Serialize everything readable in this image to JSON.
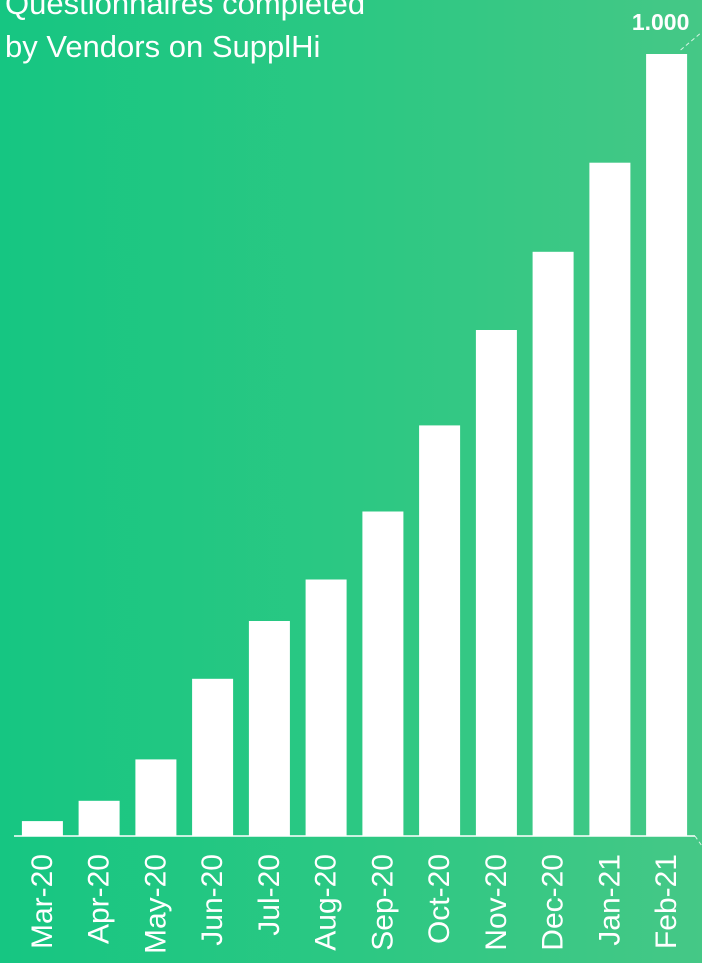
{
  "chart_data": {
    "type": "bar",
    "title_lines": [
      "Questionnaires completed",
      "by Vendors on SupplHi"
    ],
    "categories": [
      "Mar-20",
      "Apr-20",
      "May-20",
      "Jun-20",
      "Jul-20",
      "Aug-20",
      "Sep-20",
      "Oct-20",
      "Nov-20",
      "Dec-20",
      "Jan-21",
      "Feb-21"
    ],
    "values": [
      19,
      45,
      98,
      201,
      275,
      328,
      415,
      525,
      647,
      747,
      861,
      1000
    ],
    "data_labels": [
      {
        "index": 11,
        "text": "1.000"
      }
    ],
    "ylim": [
      0,
      1000
    ],
    "grid": false,
    "bar_color": "#ffffff",
    "background_colors": [
      "#16c682",
      "#45c886"
    ]
  }
}
